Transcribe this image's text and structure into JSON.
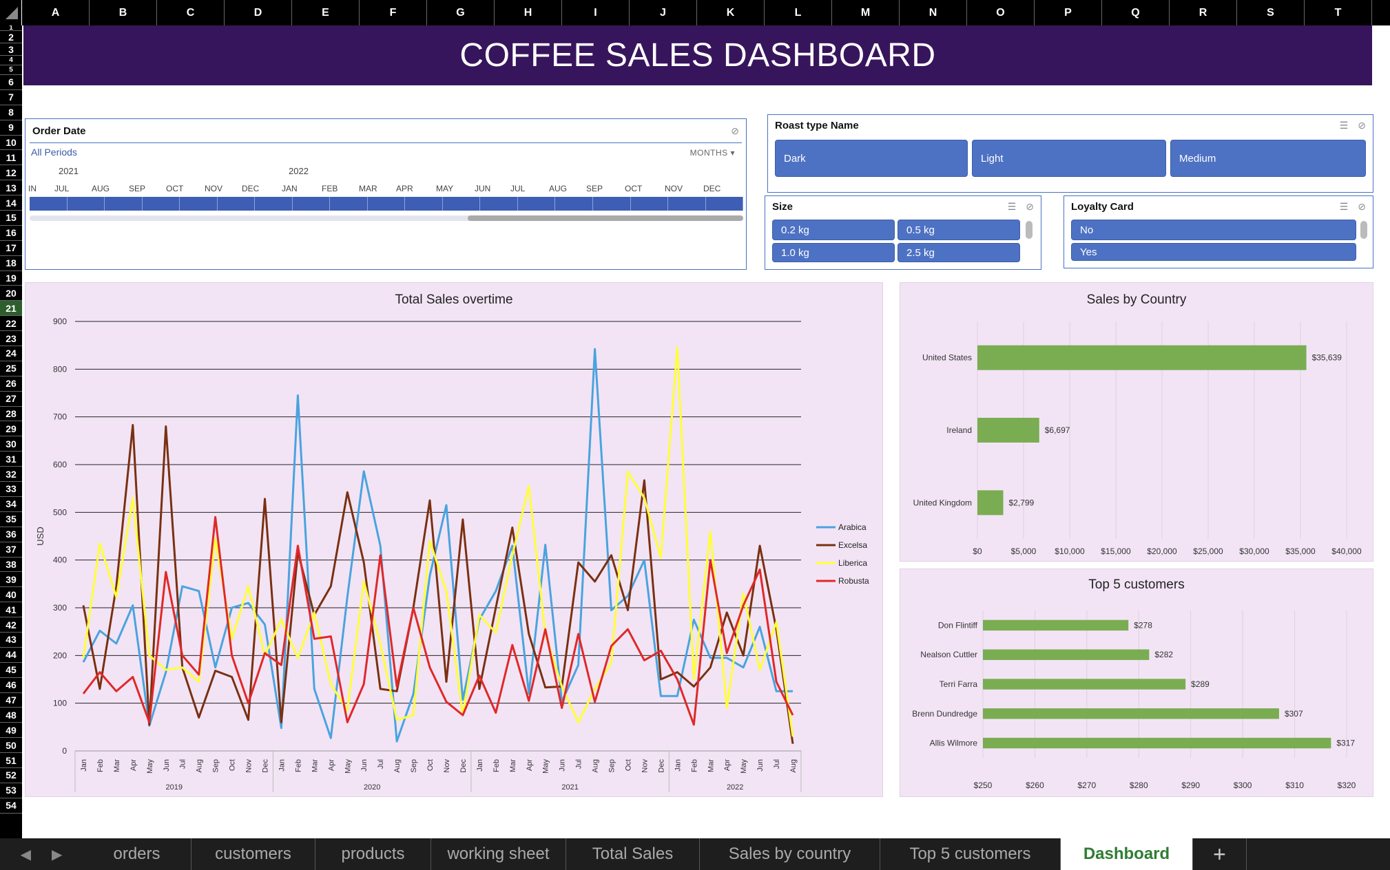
{
  "columns": [
    "A",
    "B",
    "C",
    "D",
    "E",
    "F",
    "G",
    "H",
    "I",
    "J",
    "K",
    "L",
    "M",
    "N",
    "O",
    "P",
    "Q",
    "R",
    "S",
    "T"
  ],
  "rows": [
    "1",
    "2",
    "3",
    "4",
    "5",
    "6",
    "7",
    "8",
    "9",
    "10",
    "11",
    "12",
    "13",
    "14",
    "15",
    "16",
    "17",
    "18",
    "19",
    "20",
    "21",
    "22",
    "23",
    "24",
    "25",
    "26",
    "27",
    "28",
    "29",
    "30",
    "31",
    "32",
    "33",
    "34",
    "35",
    "36",
    "37",
    "38",
    "39",
    "40",
    "41",
    "42",
    "43",
    "44",
    "45",
    "46",
    "47",
    "48",
    "49",
    "50",
    "51",
    "52",
    "53",
    "54"
  ],
  "selected_row": "21",
  "banner": {
    "title": "COFFEE SALES DASHBOARD"
  },
  "timeline": {
    "title": "Order Date",
    "periods": "All Periods",
    "level": "MONTHS",
    "years": [
      "2021",
      "2022"
    ],
    "months": [
      "IN",
      "JUL",
      "AUG",
      "SEP",
      "OCT",
      "NOV",
      "DEC",
      "JAN",
      "FEB",
      "MAR",
      "APR",
      "MAY",
      "JUN",
      "JUL",
      "AUG",
      "SEP",
      "OCT",
      "NOV",
      "DEC"
    ]
  },
  "slicers": {
    "roast": {
      "title": "Roast type Name",
      "items": [
        "Dark",
        "Light",
        "Medium"
      ]
    },
    "size": {
      "title": "Size",
      "items": [
        "0.2 kg",
        "0.5 kg",
        "1.0 kg",
        "2.5 kg"
      ]
    },
    "loyalty": {
      "title": "Loyalty Card",
      "items": [
        "No",
        "Yes"
      ]
    }
  },
  "tabs": [
    "orders",
    "customers",
    "products",
    "working sheet",
    "Total Sales",
    "Sales by country",
    "Top 5 customers",
    "Dashboard"
  ],
  "active_tab": "Dashboard",
  "add_tab_label": "+",
  "chart_data": [
    {
      "type": "line",
      "title": "Total Sales overtime",
      "ylabel": "USD",
      "ylim": [
        0,
        900
      ],
      "yticks": [
        0,
        100,
        200,
        300,
        400,
        500,
        600,
        700,
        800,
        900
      ],
      "x": [
        "Jan",
        "Feb",
        "Mar",
        "Apr",
        "May",
        "Jun",
        "Jul",
        "Aug",
        "Sep",
        "Oct",
        "Nov",
        "Dec",
        "Jan",
        "Feb",
        "Mar",
        "Apr",
        "May",
        "Jun",
        "Jul",
        "Aug",
        "Sep",
        "Oct",
        "Nov",
        "Dec",
        "Jan",
        "Feb",
        "Mar",
        "Apr",
        "May",
        "Jun",
        "Jul",
        "Aug",
        "Sep",
        "Oct",
        "Nov",
        "Dec",
        "Jan",
        "Feb",
        "Mar",
        "Apr",
        "May",
        "Jun",
        "Jul",
        "Aug"
      ],
      "year_groups": [
        {
          "label": "2019",
          "count": 12
        },
        {
          "label": "2020",
          "count": 12
        },
        {
          "label": "2021",
          "count": 12
        },
        {
          "label": "2022",
          "count": 8
        }
      ],
      "legend_position": "right",
      "series": [
        {
          "name": "Arabica",
          "color": "#4aa3df",
          "values": [
            186,
            252,
            225,
            305,
            53,
            165,
            345,
            335,
            175,
            300,
            310,
            265,
            48,
            745,
            130,
            27,
            323,
            586,
            430,
            20,
            119,
            367,
            515,
            107,
            275,
            335,
            430,
            120,
            432,
            103,
            180,
            842,
            295,
            325,
            400,
            115,
            115,
            275,
            195,
            195,
            175,
            260,
            125,
            125
          ]
        },
        {
          "name": "Excelsa",
          "color": "#7a3010",
          "values": [
            305,
            130,
            345,
            683,
            55,
            680,
            175,
            70,
            168,
            155,
            65,
            528,
            60,
            417,
            285,
            345,
            542,
            395,
            130,
            125,
            300,
            525,
            145,
            485,
            130,
            300,
            468,
            245,
            133,
            135,
            395,
            355,
            410,
            295,
            567,
            150,
            165,
            135,
            175,
            290,
            200,
            430,
            255,
            15
          ]
        },
        {
          "name": "Liberica",
          "color": "#ffff3a",
          "values": [
            195,
            435,
            322,
            530,
            200,
            170,
            175,
            145,
            445,
            235,
            345,
            200,
            275,
            195,
            290,
            140,
            85,
            355,
            225,
            65,
            75,
            440,
            335,
            75,
            285,
            248,
            410,
            555,
            245,
            135,
            60,
            130,
            185,
            585,
            530,
            405,
            845,
            150,
            460,
            90,
            330,
            170,
            270,
            30
          ]
        },
        {
          "name": "Robusta",
          "color": "#e02828",
          "values": [
            120,
            165,
            125,
            155,
            60,
            375,
            200,
            160,
            490,
            200,
            100,
            205,
            180,
            430,
            235,
            240,
            60,
            140,
            410,
            135,
            300,
            175,
            103,
            75,
            158,
            80,
            222,
            105,
            255,
            90,
            245,
            103,
            220,
            255,
            190,
            210,
            150,
            55,
            400,
            205,
            305,
            380,
            145,
            75
          ]
        }
      ]
    },
    {
      "type": "bar",
      "orientation": "horizontal",
      "title": "Sales by Country",
      "categories": [
        "United States",
        "Ireland",
        "United Kingdom"
      ],
      "values": [
        35639,
        6697,
        2799
      ],
      "value_labels": [
        "$35,639",
        "$6,697",
        "$2,799"
      ],
      "xlim": [
        0,
        40000
      ],
      "xticks": [
        "$0",
        "$5,000",
        "$10,000",
        "$15,000",
        "$20,000",
        "$25,000",
        "$30,000",
        "$35,000",
        "$40,000"
      ],
      "color": "#7aad52"
    },
    {
      "type": "bar",
      "orientation": "horizontal",
      "title": "Top 5 customers",
      "categories": [
        "Don Flintiff",
        "Nealson Cuttler",
        "Terri Farra",
        "Brenn Dundredge",
        "Allis Wilmore"
      ],
      "values": [
        278,
        282,
        289,
        307,
        317
      ],
      "value_labels": [
        "$278",
        "$282",
        "$289",
        "$307",
        "$317"
      ],
      "xlim": [
        250,
        320
      ],
      "xticks": [
        "$250",
        "$260",
        "$270",
        "$280",
        "$290",
        "$300",
        "$310",
        "$320"
      ],
      "color": "#7aad52"
    }
  ]
}
